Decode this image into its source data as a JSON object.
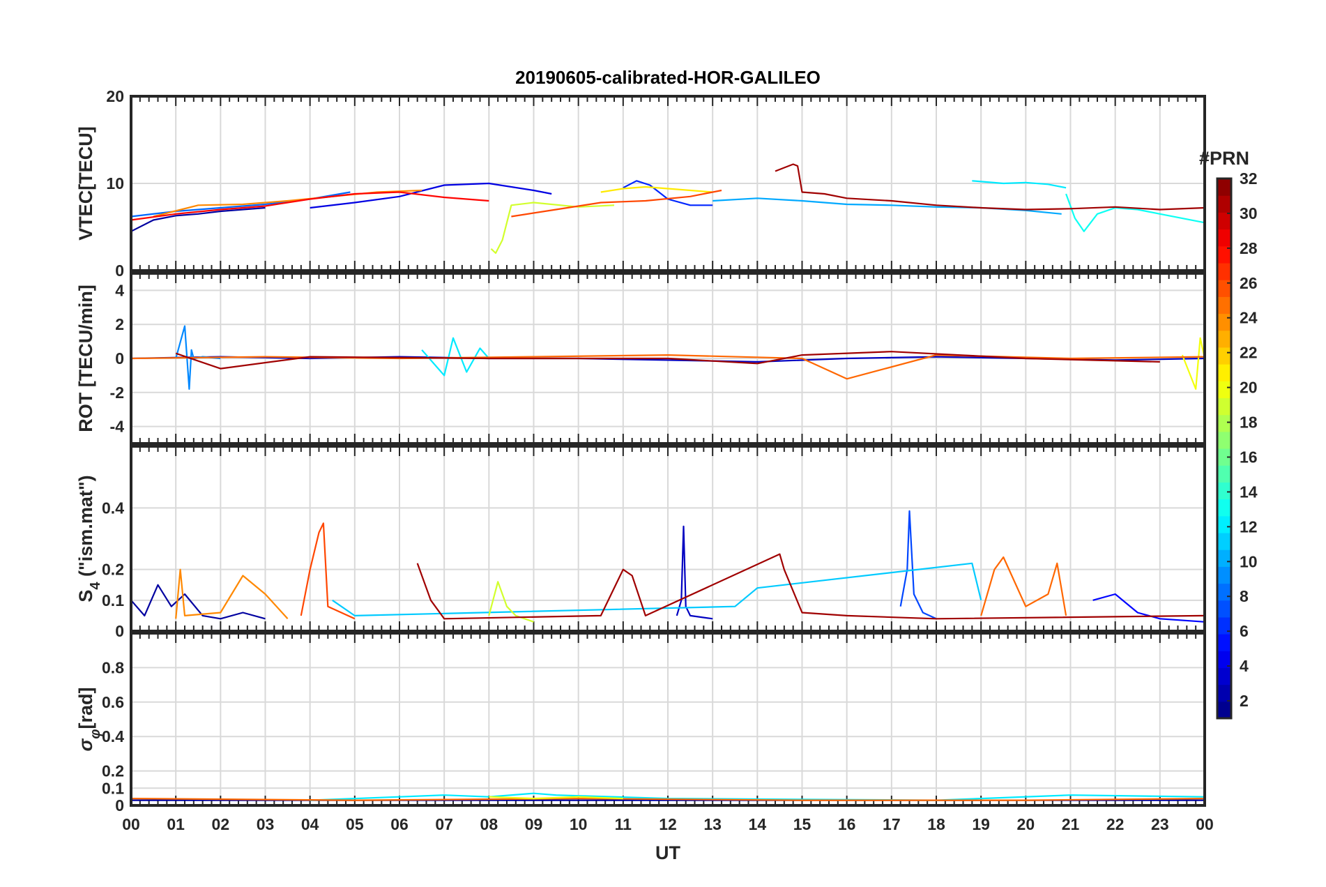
{
  "chart_data": {
    "type": "line",
    "title": "20190605-calibrated-HOR-GALILEO",
    "xlabel": "UT",
    "xlim": [
      0,
      24
    ],
    "x_ticks": [
      "00",
      "01",
      "02",
      "03",
      "04",
      "05",
      "06",
      "07",
      "08",
      "09",
      "10",
      "11",
      "12",
      "13",
      "14",
      "15",
      "16",
      "17",
      "18",
      "19",
      "20",
      "21",
      "22",
      "23",
      "00"
    ],
    "grid": true,
    "colormap": "jet",
    "colorbar": {
      "title": "#PRN",
      "range": [
        1,
        32
      ],
      "ticks": [
        "2",
        "4",
        "6",
        "8",
        "10",
        "12",
        "14",
        "16",
        "18",
        "20",
        "22",
        "24",
        "26",
        "28",
        "30",
        "32"
      ],
      "placement": "right"
    },
    "panels": [
      {
        "ylabel": "VTEC[TECU]",
        "ylim": [
          0,
          20
        ],
        "y_ticks": [
          "0",
          "10",
          "20"
        ],
        "series": [
          {
            "prn": 2,
            "x": [
              0.0,
              0.5,
              1.0,
              1.5,
              2.0,
              2.5,
              3.0
            ],
            "y": [
              4.5,
              5.8,
              6.3,
              6.5,
              6.8,
              7.0,
              7.2
            ]
          },
          {
            "prn": 4,
            "x": [
              4.0,
              5.0,
              6.0,
              7.0,
              8.0,
              9.0,
              9.4
            ],
            "y": [
              7.2,
              7.8,
              8.5,
              9.8,
              10.0,
              9.2,
              8.8
            ]
          },
          {
            "prn": 6,
            "x": [
              11.0,
              11.3,
              11.6,
              12.0,
              12.5,
              13.0
            ],
            "y": [
              9.5,
              10.3,
              9.8,
              8.2,
              7.5,
              7.5
            ]
          },
          {
            "prn": 8,
            "x": [
              0.0,
              1.0,
              2.0,
              3.0,
              4.0,
              4.9
            ],
            "y": [
              6.2,
              6.8,
              7.2,
              7.6,
              8.2,
              9.0
            ]
          },
          {
            "prn": 10,
            "x": [
              13.0,
              14.0,
              15.0,
              16.0,
              17.0,
              18.0,
              19.0,
              20.0,
              20.8
            ],
            "y": [
              8.0,
              8.3,
              8.0,
              7.6,
              7.5,
              7.3,
              7.2,
              6.9,
              6.5
            ]
          },
          {
            "prn": 12,
            "x": [
              18.8,
              19.5,
              20.0,
              20.5,
              20.9
            ],
            "y": [
              10.3,
              10.0,
              10.1,
              9.9,
              9.5
            ]
          },
          {
            "prn": 13,
            "x": [
              20.9,
              21.1,
              21.3,
              21.6,
              22.0,
              22.5,
              23.0,
              24.0
            ],
            "y": [
              8.8,
              6.0,
              4.5,
              6.5,
              7.2,
              7.0,
              6.5,
              5.5
            ]
          },
          {
            "prn": 19,
            "x": [
              8.05,
              8.15,
              8.3,
              8.5,
              9.0,
              10.0,
              10.8
            ],
            "y": [
              2.5,
              2.0,
              3.5,
              7.5,
              7.8,
              7.3,
              7.5
            ]
          },
          {
            "prn": 21,
            "x": [
              10.5,
              11.0,
              11.5,
              12.0,
              12.5,
              13.0
            ],
            "y": [
              9.0,
              9.4,
              9.6,
              9.4,
              9.2,
              9.0
            ]
          },
          {
            "prn": 24,
            "x": [
              0.5,
              1.5,
              2.5,
              3.5,
              4.5,
              5.5,
              6.5
            ],
            "y": [
              6.2,
              7.5,
              7.6,
              8.0,
              8.5,
              9.0,
              9.2
            ]
          },
          {
            "prn": 26,
            "x": [
              8.5,
              9.5,
              10.5,
              11.5,
              12.5,
              13.2
            ],
            "y": [
              6.2,
              7.0,
              7.8,
              8.0,
              8.5,
              9.2
            ]
          },
          {
            "prn": 28,
            "x": [
              0.0,
              1.0,
              2.0,
              3.0,
              4.0,
              5.0,
              6.0,
              7.0,
              8.0
            ],
            "y": [
              5.8,
              6.5,
              7.0,
              7.4,
              8.2,
              8.8,
              9.0,
              8.4,
              8.0
            ]
          },
          {
            "prn": 31,
            "x": [
              14.4,
              14.6,
              14.8,
              14.9,
              15.0,
              15.5,
              16.0,
              17.0,
              18.0,
              19.0,
              20.0,
              21.0,
              22.0,
              23.0,
              24.0
            ],
            "y": [
              11.4,
              11.8,
              12.2,
              12.0,
              9.0,
              8.8,
              8.3,
              8.0,
              7.5,
              7.2,
              7.0,
              7.1,
              7.3,
              7.0,
              7.2
            ]
          }
        ]
      },
      {
        "ylabel": "ROT [TECU/min]",
        "ylim": [
          -5,
          5
        ],
        "y_ticks": [
          "-4",
          "-2",
          "0",
          "2",
          "4"
        ],
        "series": [
          {
            "prn": 3,
            "x": [
              0.0,
              2.0,
              4.0,
              6.0,
              8.0,
              10.0,
              12.0,
              14.0,
              16.0,
              18.0,
              20.0,
              22.0,
              24.0
            ],
            "y": [
              0.0,
              0.1,
              0.0,
              0.1,
              0.0,
              0.0,
              -0.1,
              -0.2,
              0.0,
              0.1,
              0.0,
              -0.1,
              0.0
            ]
          },
          {
            "prn": 9,
            "x": [
              1.0,
              1.2,
              1.3,
              1.35,
              1.4,
              1.6,
              2.0
            ],
            "y": [
              0.0,
              1.9,
              -1.8,
              0.5,
              0.0,
              0.1,
              0.0
            ]
          },
          {
            "prn": 12,
            "x": [
              6.5,
              7.0,
              7.2,
              7.5,
              7.8,
              8.0
            ],
            "y": [
              0.5,
              -1.0,
              1.2,
              -0.8,
              0.6,
              0.0
            ]
          },
          {
            "prn": 20,
            "x": [
              23.5,
              23.8,
              23.9,
              24.0
            ],
            "y": [
              0.2,
              -1.8,
              1.2,
              0.0
            ]
          },
          {
            "prn": 25,
            "x": [
              0.0,
              3.0,
              6.0,
              9.0,
              12.0,
              15.0,
              16.0,
              18.0,
              21.0,
              24.0
            ],
            "y": [
              0.0,
              0.1,
              0.0,
              0.1,
              0.2,
              0.0,
              -1.2,
              0.2,
              0.0,
              0.1
            ]
          },
          {
            "prn": 31,
            "x": [
              1.0,
              2.0,
              4.0,
              8.0,
              12.0,
              14.0,
              15.0,
              17.0,
              20.0,
              23.0
            ],
            "y": [
              0.3,
              -0.6,
              0.1,
              0.0,
              0.0,
              -0.3,
              0.2,
              0.4,
              0.0,
              -0.2
            ]
          }
        ]
      },
      {
        "ylabel": "S_4 (\"ism.mat\")",
        "ylabel_main": "S",
        "ylabel_sub": "4",
        "ylabel_rest": " (\"ism.mat\")",
        "ylim": [
          0,
          0.6
        ],
        "y_ticks": [
          "0",
          "0.1",
          "0.2",
          "0.4"
        ],
        "series": [
          {
            "prn": 2,
            "x": [
              0.0,
              0.3,
              0.6,
              0.9,
              1.2,
              1.6,
              2.0,
              2.5,
              3.0
            ],
            "y": [
              0.1,
              0.05,
              0.15,
              0.08,
              0.12,
              0.05,
              0.04,
              0.06,
              0.04
            ]
          },
          {
            "prn": 3,
            "x": [
              12.2,
              12.3,
              12.35,
              12.4,
              12.5,
              13.0
            ],
            "y": [
              0.05,
              0.1,
              0.34,
              0.08,
              0.05,
              0.04
            ]
          },
          {
            "prn": 7,
            "x": [
              17.2,
              17.35,
              17.4,
              17.5,
              17.7,
              18.0
            ],
            "y": [
              0.08,
              0.2,
              0.39,
              0.12,
              0.06,
              0.04
            ]
          },
          {
            "prn": 5,
            "x": [
              21.5,
              22.0,
              22.5,
              23.0,
              24.0
            ],
            "y": [
              0.1,
              0.12,
              0.06,
              0.04,
              0.03
            ]
          },
          {
            "prn": 11,
            "x": [
              4.5,
              5.0,
              13.5,
              14.0,
              18.8,
              19.0
            ],
            "y": [
              0.1,
              0.05,
              0.08,
              0.14,
              0.22,
              0.1
            ]
          },
          {
            "prn": 19,
            "x": [
              8.0,
              8.2,
              8.4,
              8.6,
              9.0
            ],
            "y": [
              0.05,
              0.16,
              0.08,
              0.05,
              0.03
            ]
          },
          {
            "prn": 24,
            "x": [
              1.0,
              1.1,
              1.2,
              2.0,
              2.5,
              3.0,
              3.5
            ],
            "y": [
              0.04,
              0.2,
              0.05,
              0.06,
              0.18,
              0.12,
              0.04
            ]
          },
          {
            "prn": 26,
            "x": [
              3.8,
              4.0,
              4.2,
              4.3,
              4.4,
              5.0
            ],
            "y": [
              0.05,
              0.2,
              0.32,
              0.35,
              0.08,
              0.04
            ]
          },
          {
            "prn": 25,
            "x": [
              19.0,
              19.3,
              19.5,
              20.0,
              20.5,
              20.7,
              20.9
            ],
            "y": [
              0.05,
              0.2,
              0.24,
              0.08,
              0.12,
              0.22,
              0.05
            ]
          },
          {
            "prn": 31,
            "x": [
              6.4,
              6.5,
              6.7,
              7.0,
              10.5,
              11.0,
              11.2,
              11.5,
              14.5,
              14.6,
              15.0,
              16.0,
              18.0,
              24.0
            ],
            "y": [
              0.22,
              0.18,
              0.1,
              0.04,
              0.05,
              0.2,
              0.18,
              0.05,
              0.25,
              0.2,
              0.06,
              0.05,
              0.04,
              0.05
            ]
          }
        ]
      },
      {
        "ylabel": "σ_φ[rad]",
        "ylabel_main": "σ",
        "ylabel_sub": "φ",
        "ylabel_rest": "[rad]",
        "ylim": [
          0,
          1.0
        ],
        "y_ticks": [
          "0",
          "0.1",
          "0.2",
          "0.4",
          "0.6",
          "0.8"
        ],
        "series": [
          {
            "prn": 2,
            "x": [
              0.0,
              6.0,
              12.0,
              18.0,
              24.0
            ],
            "y": [
              0.03,
              0.03,
              0.03,
              0.03,
              0.03
            ]
          },
          {
            "prn": 12,
            "x": [
              4.0,
              6.0,
              7.0,
              8.0,
              9.0,
              9.5,
              12.0,
              18.0,
              21.0,
              24.0
            ],
            "y": [
              0.03,
              0.05,
              0.06,
              0.05,
              0.07,
              0.06,
              0.04,
              0.03,
              0.06,
              0.05
            ]
          },
          {
            "prn": 25,
            "x": [
              0.0,
              5.0,
              10.0,
              15.0,
              20.0,
              24.0
            ],
            "y": [
              0.04,
              0.03,
              0.04,
              0.03,
              0.03,
              0.04
            ]
          },
          {
            "prn": 20,
            "x": [
              8.0,
              9.0,
              10.0,
              11.0
            ],
            "y": [
              0.05,
              0.04,
              0.05,
              0.04
            ]
          }
        ]
      }
    ]
  }
}
